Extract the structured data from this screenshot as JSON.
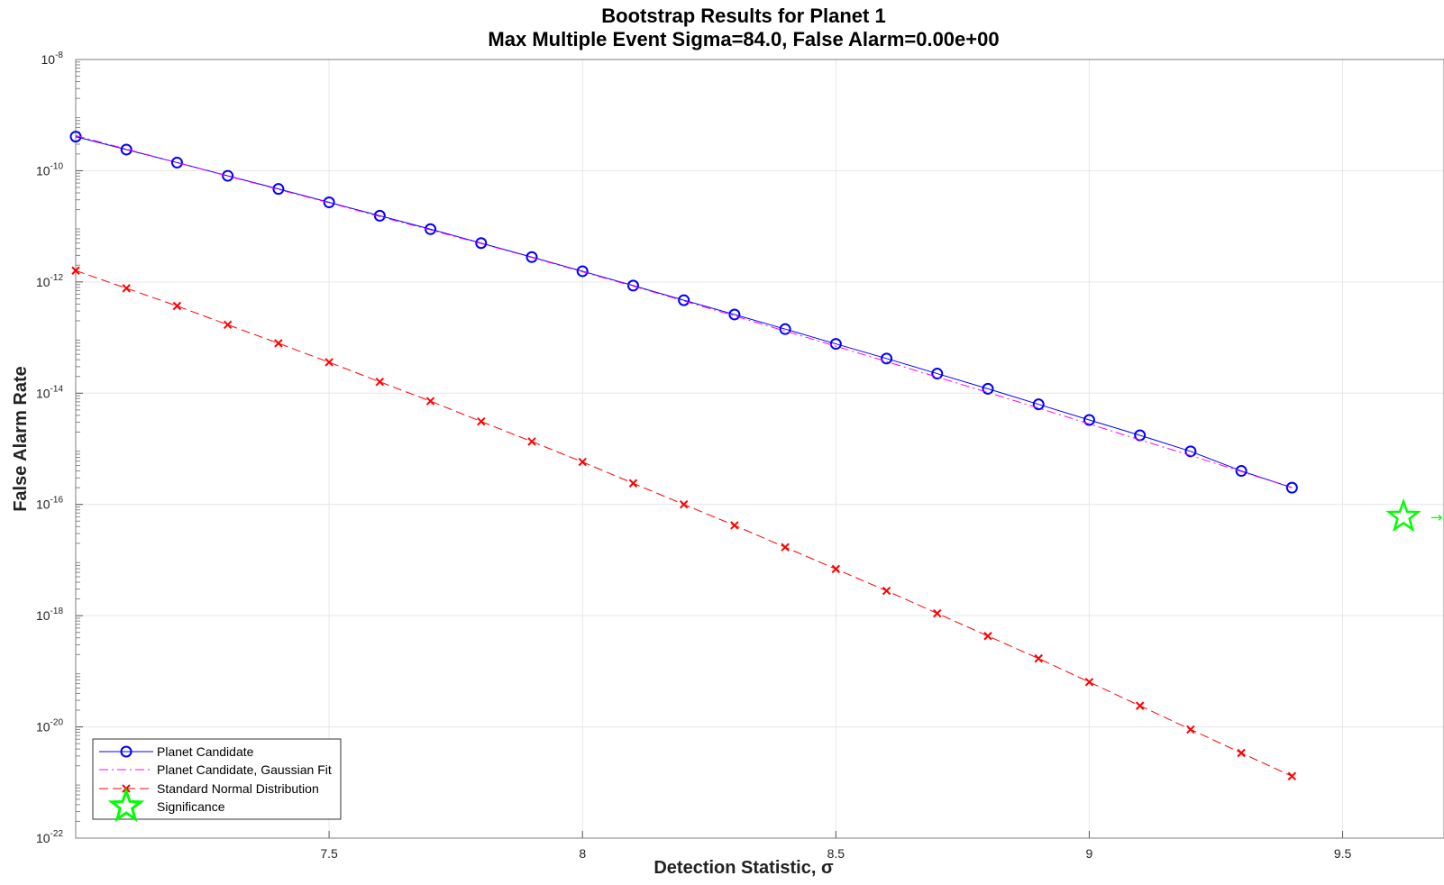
{
  "chart_data": {
    "type": "line",
    "title": [
      "Bootstrap Results for Planet 1",
      "Max Multiple Event Sigma=84.0, False Alarm=0.00e+00"
    ],
    "xlabel": "Detection Statistic, σ",
    "ylabel": "False Alarm Rate",
    "xlim": [
      7.0,
      9.7
    ],
    "ylim": [
      1e-22,
      1e-08
    ],
    "yscale": "log",
    "grid": true,
    "legend_position": "bottom-left",
    "x_ticks": [
      "7.5",
      "8",
      "8.5",
      "9",
      "9.5"
    ],
    "y_ticks": [
      {
        "base": "10",
        "exp": "-8"
      },
      {
        "base": "10",
        "exp": "-10"
      },
      {
        "base": "10",
        "exp": "-12"
      },
      {
        "base": "10",
        "exp": "-14"
      },
      {
        "base": "10",
        "exp": "-16"
      },
      {
        "base": "10",
        "exp": "-18"
      },
      {
        "base": "10",
        "exp": "-20"
      },
      {
        "base": "10",
        "exp": "-22"
      }
    ],
    "x": [
      7.0,
      7.1,
      7.2,
      7.3,
      7.4,
      7.5,
      7.6,
      7.7,
      7.8,
      7.9,
      8.0,
      8.1,
      8.2,
      8.3,
      8.4,
      8.5,
      8.6,
      8.7,
      8.8,
      8.9,
      9.0,
      9.1,
      9.2,
      9.3,
      9.4
    ],
    "series": [
      {
        "name": "Planet Candidate",
        "color": "#0000ff",
        "marker": "circle",
        "line": "solid",
        "values": [
          4.1e-10,
          2.4e-10,
          1.4e-10,
          8.1e-11,
          4.7e-11,
          2.7e-11,
          1.55e-11,
          8.9e-12,
          5e-12,
          2.8e-12,
          1.56e-12,
          8.6e-13,
          4.7e-13,
          2.6e-13,
          1.42e-13,
          7.7e-14,
          4.2e-14,
          2.25e-14,
          1.2e-14,
          6.3e-15,
          3.3e-15,
          1.75e-15,
          9e-16,
          4e-16,
          2e-16
        ]
      },
      {
        "name": "Planet Candidate, Gaussian Fit",
        "color": "#ff00ff",
        "marker": "none",
        "line": "dashdot",
        "values": [
          4.3e-10,
          2.45e-10,
          1.4e-10,
          8e-11,
          4.6e-11,
          2.65e-11,
          1.5e-11,
          8.6e-12,
          4.9e-12,
          2.75e-12,
          1.52e-12,
          8.4e-13,
          4.55e-13,
          2.45e-13,
          1.31e-13,
          7e-14,
          3.7e-14,
          1.95e-14,
          1.03e-14,
          5.4e-15,
          2.8e-15,
          1.45e-15,
          7.6e-16,
          3.9e-16,
          2e-16
        ]
      },
      {
        "name": "Standard Normal Distribution",
        "color": "#ff0000",
        "marker": "x",
        "line": "dashed",
        "values": [
          1.6e-12,
          7.7e-13,
          3.7e-13,
          1.7e-13,
          7.9e-14,
          3.6e-14,
          1.6e-14,
          7.2e-15,
          3.1e-15,
          1.35e-15,
          5.8e-16,
          2.4e-16,
          1e-16,
          4.2e-17,
          1.7e-17,
          6.9e-18,
          2.8e-18,
          1.1e-18,
          4.3e-19,
          1.7e-19,
          6.4e-20,
          2.4e-20,
          9e-21,
          3.4e-21,
          1.3e-21
        ]
      }
    ],
    "significance": {
      "name": "Significance",
      "color": "#00ff00",
      "marker": "star",
      "x": 9.62,
      "y": 6e-17,
      "annotation": "→"
    }
  }
}
